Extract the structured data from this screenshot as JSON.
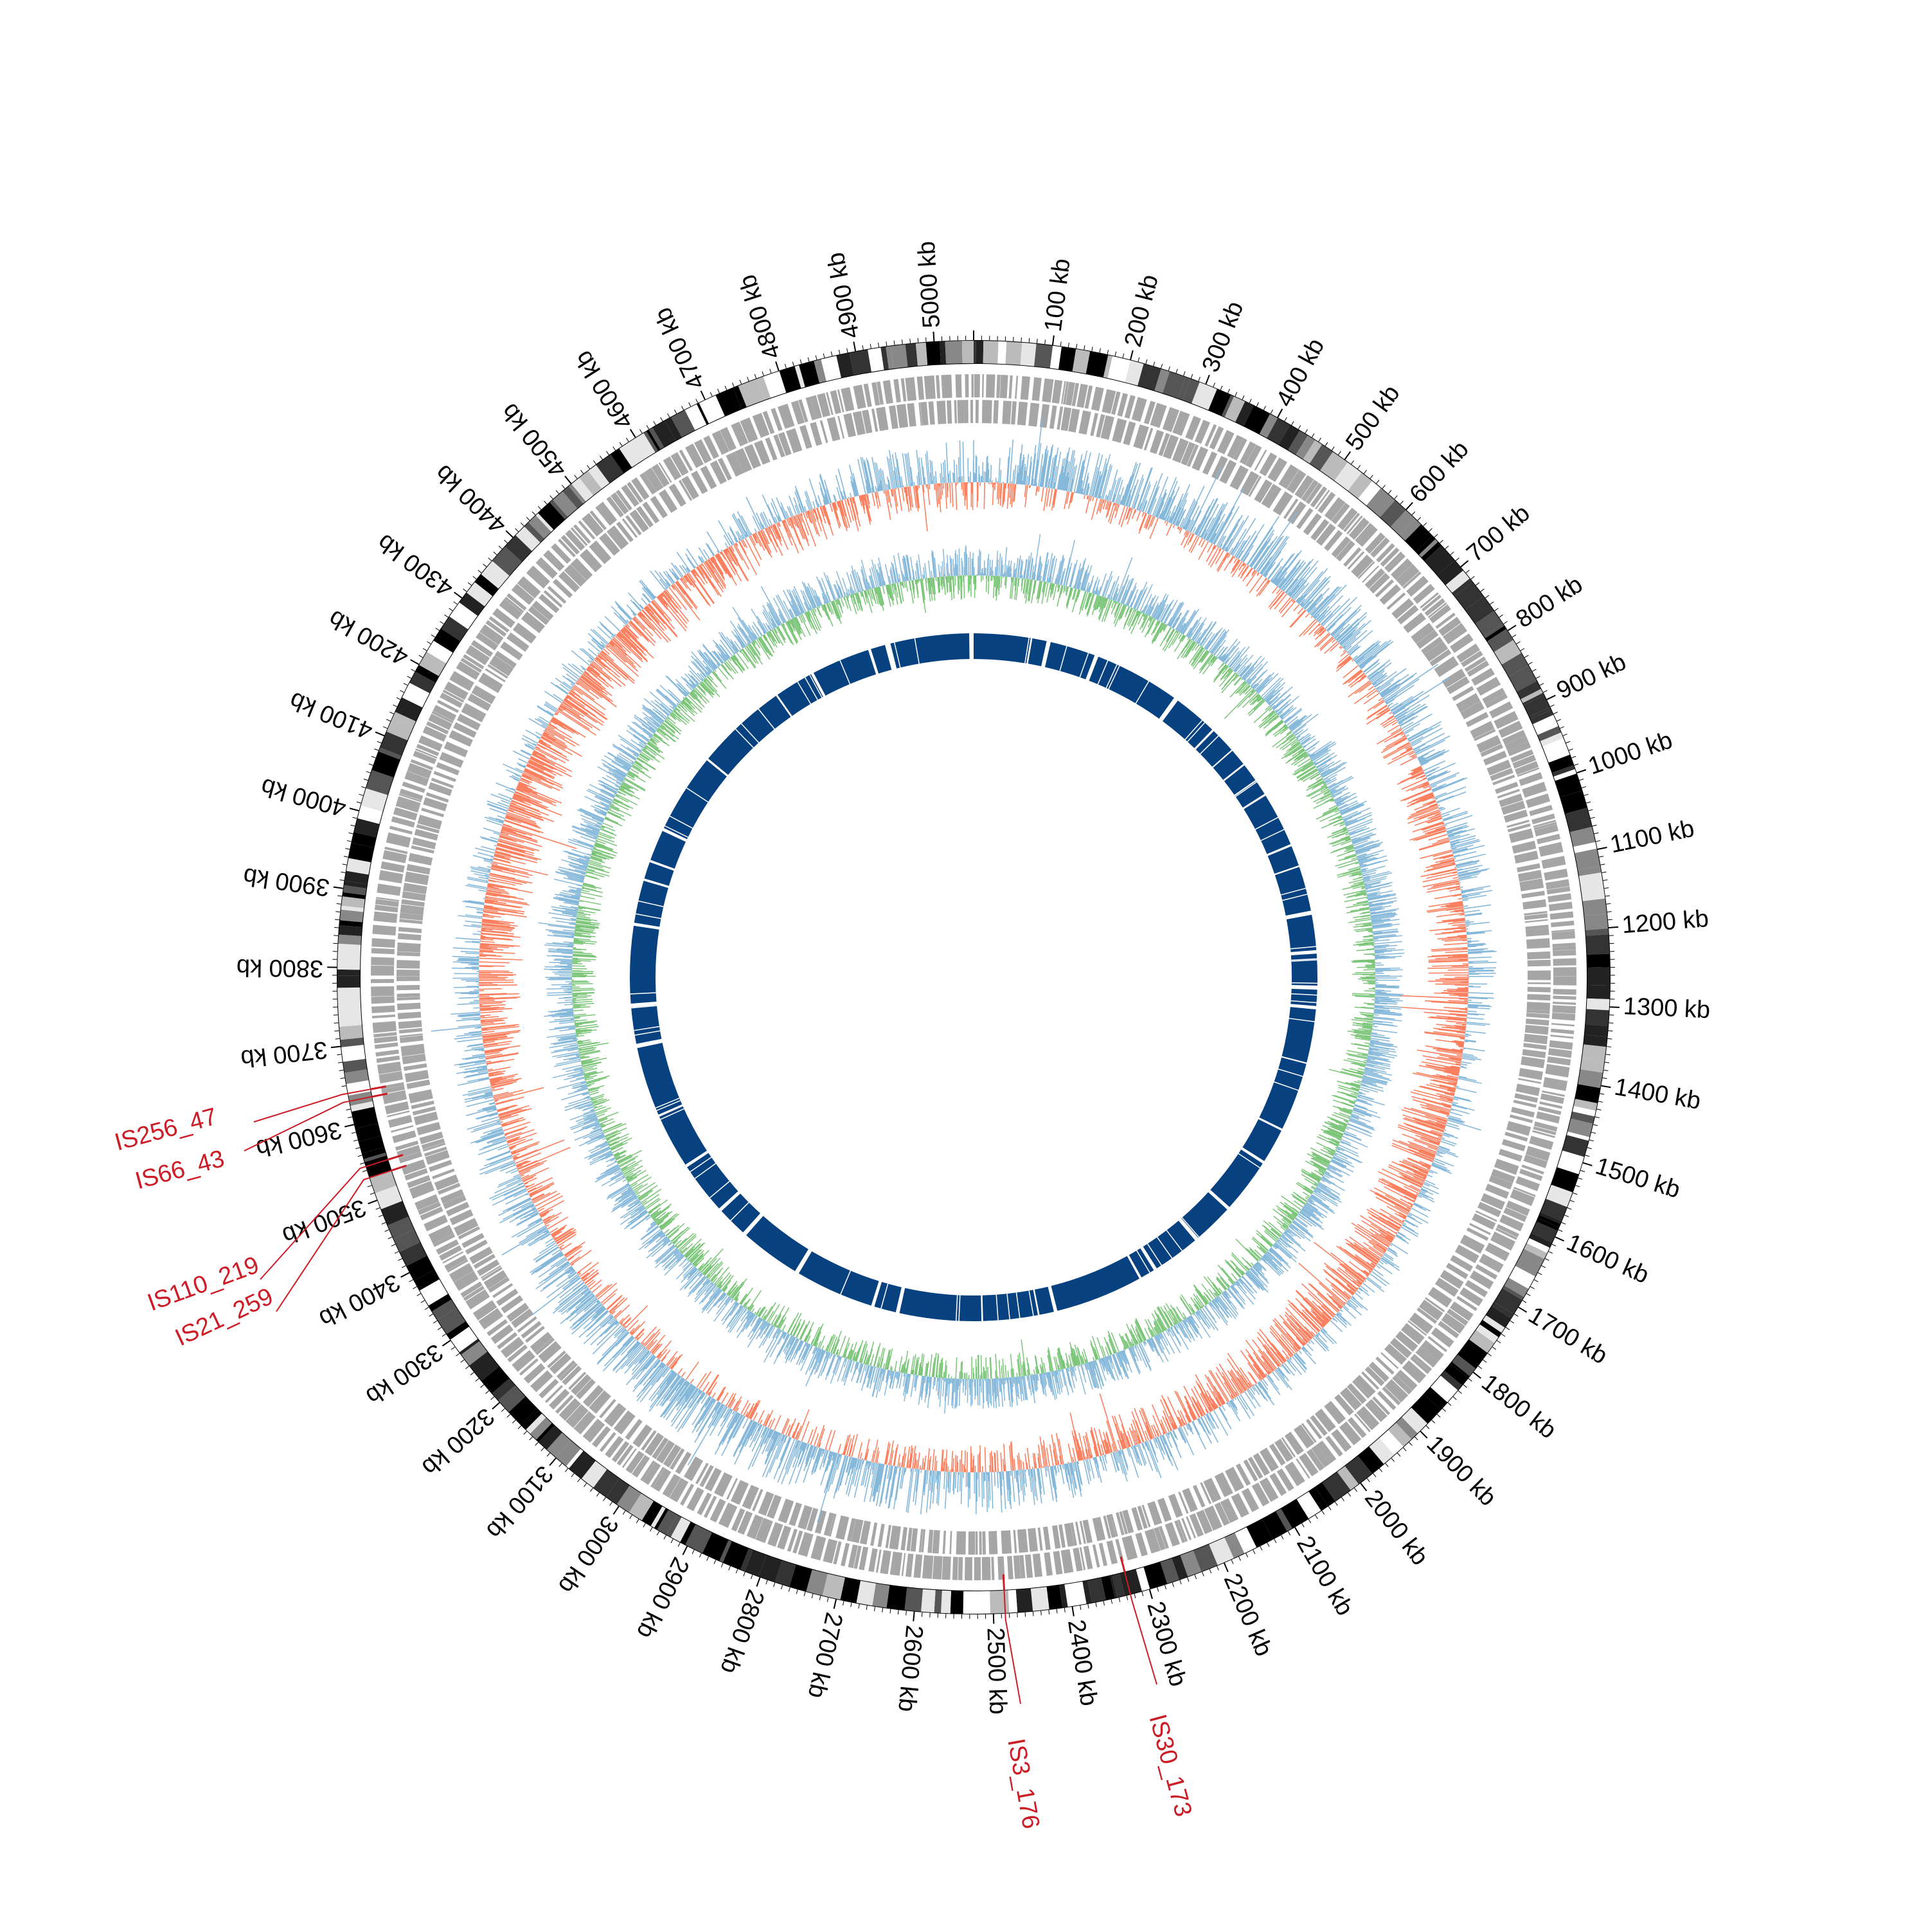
{
  "diagram": {
    "type": "circular-genome-map",
    "genome_length_kb": 5050,
    "unit": "kb",
    "tick_labels": [
      "100 kb",
      "200 kb",
      "300 kb",
      "400 kb",
      "500 kb",
      "600 kb",
      "700 kb",
      "800 kb",
      "900 kb",
      "1000 kb",
      "1100 kb",
      "1200 kb",
      "1300 kb",
      "1400 kb",
      "1500 kb",
      "1600 kb",
      "1700 kb",
      "1800 kb",
      "1900 kb",
      "2000 kb",
      "2100 kb",
      "2200 kb",
      "2300 kb",
      "2400 kb",
      "2500 kb",
      "2600 kb",
      "2700 kb",
      "2800 kb",
      "2900 kb",
      "3000 kb",
      "3100 kb",
      "3200 kb",
      "3300 kb",
      "3400 kb",
      "3500 kb",
      "3600 kb",
      "3700 kb",
      "3800 kb",
      "3900 kb",
      "4000 kb",
      "4100 kb",
      "4200 kb",
      "4300 kb",
      "4400 kb",
      "4500 kb",
      "4600 kb",
      "4700 kb",
      "4800 kb",
      "4900 kb",
      "5000 kb"
    ],
    "tick_values_kb": [
      100,
      200,
      300,
      400,
      500,
      600,
      700,
      800,
      900,
      1000,
      1100,
      1200,
      1300,
      1400,
      1500,
      1600,
      1700,
      1800,
      1900,
      2000,
      2100,
      2200,
      2300,
      2400,
      2500,
      2600,
      2700,
      2800,
      2900,
      3000,
      3100,
      3200,
      3300,
      3400,
      3500,
      3600,
      3700,
      3800,
      3900,
      4000,
      4100,
      4200,
      4300,
      4400,
      4500,
      4600,
      4700,
      4800,
      4900,
      5000
    ],
    "insertion_sequences": [
      {
        "label": "IS256_47",
        "position_kb": 3640
      },
      {
        "label": "IS66_43",
        "position_kb": 3630
      },
      {
        "label": "IS110_219",
        "position_kb": 3545
      },
      {
        "label": "IS21_259",
        "position_kb": 3530
      },
      {
        "label": "IS3_176",
        "position_kb": 2485
      },
      {
        "label": "IS30_173",
        "position_kb": 2325
      }
    ],
    "colors": {
      "ideogram_dark": "#000000",
      "ideogram_light": "#ffffff",
      "genes": "#a6a6a6",
      "gc_skew_positive": "#fb8060",
      "gc_skew_negative": "#86b8da",
      "gc_content_high": "#79c477",
      "gc_content_low": "#86b8da",
      "inner_blocks": "#08417f",
      "is_labels": "#cc1c26"
    }
  }
}
